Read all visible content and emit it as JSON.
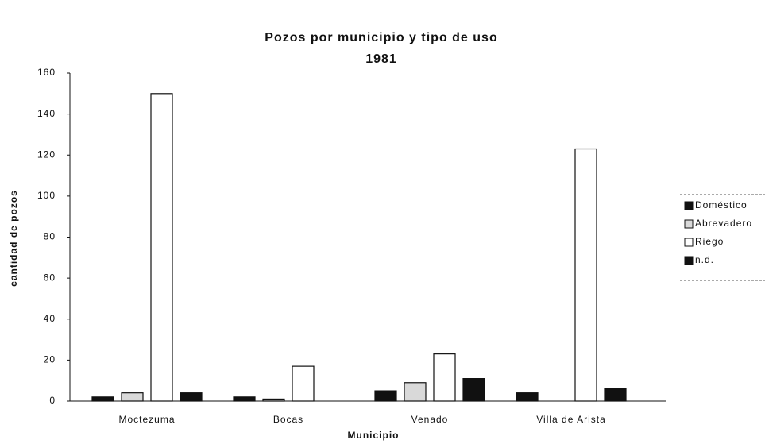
{
  "chart_data": {
    "type": "bar",
    "title": "Pozos por municipio y tipo de uso",
    "subtitle": "1981",
    "x_label": "Municipio",
    "y_label": "cantidad de pozos",
    "categories": [
      "Moctezuma",
      "Bocas",
      "Venado",
      "Villa de Arista"
    ],
    "series": [
      {
        "name": "Doméstico",
        "color": "#111111",
        "values": [
          2,
          2,
          5,
          4
        ]
      },
      {
        "name": "Abrevadero",
        "color": "#d9d9d9",
        "values": [
          4,
          1,
          9,
          0
        ]
      },
      {
        "name": "Riego",
        "color": "#ffffff",
        "values": [
          150,
          17,
          23,
          123
        ]
      },
      {
        "name": "n.d.",
        "color": "#111111",
        "values": [
          4,
          0,
          11,
          6
        ]
      }
    ],
    "ylim": [
      0,
      160
    ],
    "yticks": [
      0,
      20,
      40,
      60,
      80,
      100,
      120,
      140,
      160
    ],
    "legend": "right"
  }
}
